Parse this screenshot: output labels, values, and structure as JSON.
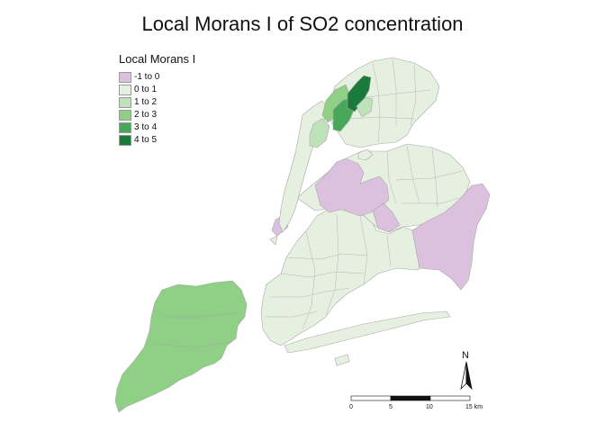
{
  "title": "Local Morans I of SO2 concentration",
  "legend": {
    "title": "Local Morans I",
    "items": [
      {
        "label": "-1 to 0",
        "color": "#dcc1df"
      },
      {
        "label": "0 to 1",
        "color": "#e6f0e1"
      },
      {
        "label": "1 to 2",
        "color": "#bfe2b9"
      },
      {
        "label": "2 to 3",
        "color": "#8fcf86"
      },
      {
        "label": "3 to 4",
        "color": "#48a85a"
      },
      {
        "label": "4 to 5",
        "color": "#1a7a3b"
      }
    ]
  },
  "scale_bar": {
    "labels": [
      "0",
      "5",
      "10",
      "15 km"
    ]
  },
  "north_arrow": {
    "label": "N"
  }
}
